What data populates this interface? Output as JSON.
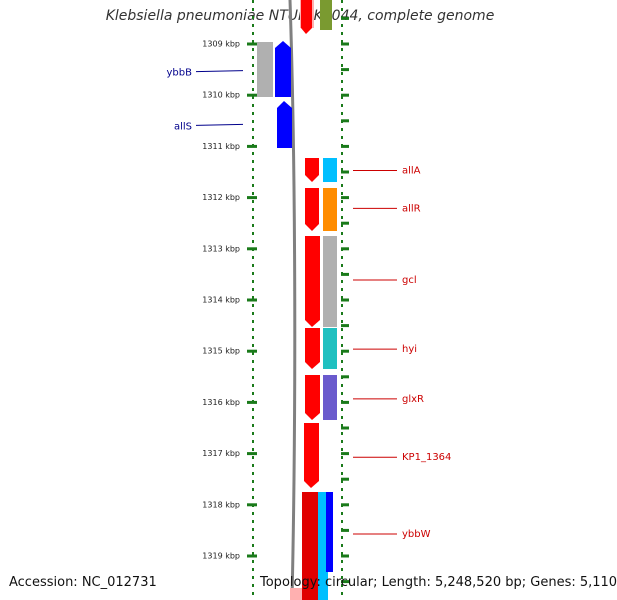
{
  "title": "Klebsiella pneumoniae NTUH-K2044, complete genome",
  "accession": "Accession: NC_012731",
  "topology": "Topology: circular; Length: 5,248,520 bp; Genes: 5,110",
  "kbp_labels": [
    {
      "kbp": 1309,
      "text": "1309 kbp"
    },
    {
      "kbp": 1310,
      "text": "1310 kbp"
    },
    {
      "kbp": 1311,
      "text": "1311 kbp"
    },
    {
      "kbp": 1312,
      "text": "1312 kbp"
    },
    {
      "kbp": 1313,
      "text": "1313 kbp"
    },
    {
      "kbp": 1314,
      "text": "1314 kbp"
    },
    {
      "kbp": 1315,
      "text": "1315 kbp"
    },
    {
      "kbp": 1316,
      "text": "1316 kbp"
    },
    {
      "kbp": 1317,
      "text": "1317 kbp"
    },
    {
      "kbp": 1318,
      "text": "1318 kbp"
    },
    {
      "kbp": 1319,
      "text": "1319 kbp"
    }
  ],
  "gene_labels": [
    {
      "name": "ybbB",
      "side": "left",
      "color": "#00008b",
      "at_kbp": 1309.55
    },
    {
      "name": "allS",
      "side": "left",
      "color": "#00008b",
      "at_kbp": 1310.6
    },
    {
      "name": "allA",
      "side": "right",
      "color": "#cc0000",
      "at_kbp": 1311.48
    },
    {
      "name": "allR",
      "side": "right",
      "color": "#cc0000",
      "at_kbp": 1312.22
    },
    {
      "name": "gcl",
      "side": "right",
      "color": "#cc0000",
      "at_kbp": 1313.62
    },
    {
      "name": "hyi",
      "side": "right",
      "color": "#cc0000",
      "at_kbp": 1314.97
    },
    {
      "name": "glxR",
      "side": "right",
      "color": "#cc0000",
      "at_kbp": 1315.94
    },
    {
      "name": "KP1_1364",
      "side": "right",
      "color": "#cc0000",
      "at_kbp": 1317.08
    },
    {
      "name": "ybbW",
      "side": "right",
      "color": "#cc0000",
      "at_kbp": 1318.58
    }
  ],
  "colors": {
    "ticks": "#1a7a1a",
    "backbone": "#808080",
    "forward_red": "#ff0000",
    "reverse_blue": "#0000ff",
    "grey": "#b0b0b0",
    "cyan": "#00bfff",
    "orange": "#ff8c00",
    "teal": "#20c0c0",
    "purple": "#6a5acd",
    "olive": "#7a9a30"
  }
}
